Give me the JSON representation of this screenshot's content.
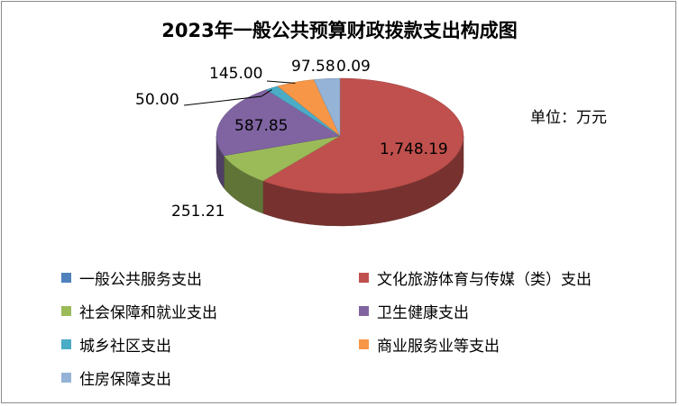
{
  "title": "2023年一般公共预算财政拨款支出构成图",
  "unit_label": "单位：万元",
  "chart_data": {
    "type": "pie",
    "title": "2023年一般公共预算财政拨款支出构成图",
    "unit": "万元",
    "three_d": true,
    "legend_position": "bottom",
    "series": [
      {
        "name": "一般公共服务支出",
        "value": 0.09,
        "label": "0.09",
        "color": "#4f81bd"
      },
      {
        "name": "文化旅游体育与传媒（类）支出",
        "value": 1748.19,
        "label": "1,748.19",
        "color": "#c0504d"
      },
      {
        "name": "社会保障和就业支出",
        "value": 251.21,
        "label": "251.21",
        "color": "#9bbb59"
      },
      {
        "name": "卫生健康支出",
        "value": 587.85,
        "label": "587.85",
        "color": "#8064a2"
      },
      {
        "name": "城乡社区支出",
        "value": 50.0,
        "label": "50.00",
        "color": "#4bacc6"
      },
      {
        "name": "商业服务业等支出",
        "value": 145.0,
        "label": "145.00",
        "color": "#f79646"
      },
      {
        "name": "住房保障支出",
        "value": 97.58,
        "label": "97.58",
        "color": "#95b3d7"
      }
    ]
  }
}
